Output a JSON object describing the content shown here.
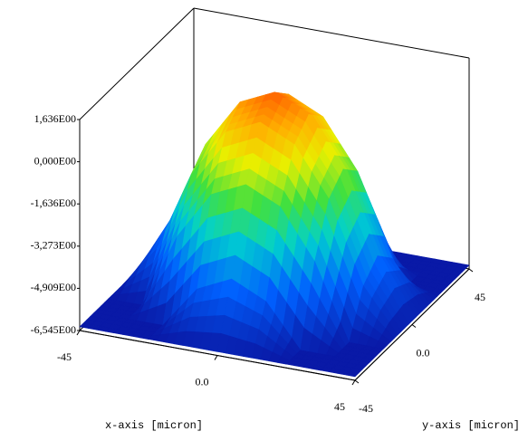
{
  "chart_data": {
    "type": "surface",
    "x_label": "x-axis [micron]",
    "y_label": "y-axis [micron]",
    "x": [
      -45,
      -33.75,
      -22.5,
      -11.25,
      0,
      11.25,
      22.5,
      33.75,
      45
    ],
    "y": [
      -45,
      -33.75,
      -22.5,
      -11.25,
      0,
      11.25,
      22.5,
      33.75,
      45
    ],
    "z": [
      [
        -6.4,
        -6.4,
        -6.4,
        -6.4,
        -6.4,
        -6.4,
        -6.4,
        -6.4,
        -6.4
      ],
      [
        -6.4,
        -6.4,
        -6.4,
        -4.75,
        -4.12,
        -4.75,
        -6.4,
        -6.4,
        -6.4
      ],
      [
        -6.4,
        -6.4,
        -3.5,
        -1.62,
        -1.0,
        -1.62,
        -3.5,
        -6.4,
        -6.4
      ],
      [
        -6.4,
        -4.75,
        -1.62,
        0.25,
        0.88,
        0.25,
        -1.62,
        -4.75,
        -6.4
      ],
      [
        -6.4,
        -4.12,
        -1.0,
        0.88,
        1.5,
        0.88,
        -1.0,
        -4.12,
        -6.4
      ],
      [
        -6.4,
        -4.75,
        -1.62,
        0.25,
        0.88,
        0.25,
        -1.62,
        -4.75,
        -6.4
      ],
      [
        -6.4,
        -6.4,
        -3.5,
        -1.62,
        -1.0,
        -1.62,
        -3.5,
        -6.4,
        -6.4
      ],
      [
        -6.4,
        -6.4,
        -6.4,
        -4.75,
        -4.12,
        -4.75,
        -6.4,
        -6.4,
        -6.4
      ],
      [
        -6.4,
        -6.4,
        -6.4,
        -6.4,
        -6.4,
        -6.4,
        -6.4,
        -6.4,
        -6.4
      ]
    ],
    "xlim": [
      -45,
      45
    ],
    "ylim": [
      -45,
      45
    ],
    "zlim": [
      -6.545,
      1.636
    ],
    "xticks": [
      -45,
      {
        "value": 0,
        "label": "0.0"
      },
      45
    ],
    "yticks": [
      -45,
      {
        "value": 0,
        "label": "0.0"
      },
      45
    ],
    "zticks": [
      {
        "value": 1.636,
        "label": "1,636E00"
      },
      {
        "value": 0,
        "label": "0,000E00"
      },
      {
        "value": -1.636,
        "label": "-1,636E00"
      },
      {
        "value": -3.273,
        "label": "-3,273E00"
      },
      {
        "value": -4.909,
        "label": "-4,909E00"
      },
      {
        "value": -6.545,
        "label": "-6,545E00"
      }
    ]
  }
}
